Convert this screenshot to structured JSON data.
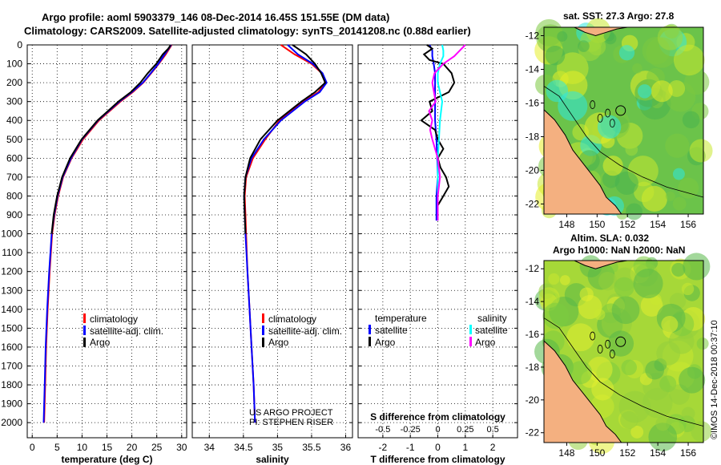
{
  "header": {
    "line1": "Argo profile: aoml 5903379_146 08-Dec-2014 16.45S 151.55E (DM data)",
    "line2": "Climatology: CARS2009. Satellite-adjusted climatology: synTS_20141208.nc (0.88d earlier)"
  },
  "depth_axis": {
    "ticks": [
      0,
      100,
      200,
      300,
      400,
      500,
      600,
      700,
      800,
      900,
      1000,
      1100,
      1200,
      1300,
      1400,
      1500,
      1600,
      1700,
      1800,
      1900,
      2000
    ],
    "range": [
      0,
      2080
    ]
  },
  "colors": {
    "climatology": "#ff0000",
    "satellite": "#0000ff",
    "argo": "#000000",
    "satellite_salt": "#00ffff",
    "argo_salt": "#ff00ff"
  },
  "chart_data": [
    {
      "type": "line",
      "title": "",
      "xlabel": "temperature (deg C)",
      "ylabel": "",
      "xlim": [
        -1,
        31
      ],
      "ylim": [
        2080,
        0
      ],
      "xticks": [
        0,
        5,
        10,
        15,
        20,
        25,
        30
      ],
      "legend": [
        "climatology",
        "satellite-adj. clim.",
        "Argo"
      ],
      "series": [
        {
          "name": "climatology",
          "color": "#ff0000",
          "depth": [
            0,
            50,
            100,
            150,
            200,
            250,
            300,
            400,
            500,
            600,
            700,
            800,
            900,
            1000,
            1200,
            1400,
            1600,
            1800,
            2000
          ],
          "values": [
            28.0,
            26.8,
            25.4,
            23.9,
            22.3,
            20.2,
            17.7,
            13.4,
            10.2,
            7.9,
            6.2,
            5.2,
            4.5,
            4.0,
            3.5,
            3.1,
            2.8,
            2.6,
            2.4
          ]
        },
        {
          "name": "satellite-adj. clim.",
          "color": "#0000ff",
          "depth": [
            0,
            50,
            100,
            150,
            200,
            250,
            300,
            400,
            500,
            600,
            700,
            800,
            900,
            1000,
            1200,
            1400,
            1600,
            1800,
            2000
          ],
          "values": [
            27.9,
            26.6,
            25.3,
            23.8,
            22.2,
            20.0,
            17.5,
            13.2,
            10.0,
            7.8,
            6.1,
            5.1,
            4.4,
            3.9,
            3.4,
            3.0,
            2.7,
            2.5,
            2.3
          ]
        },
        {
          "name": "Argo",
          "color": "#000000",
          "depth": [
            0,
            20,
            50,
            100,
            150,
            200,
            250,
            300,
            400,
            500,
            600,
            700,
            800,
            900,
            1000
          ],
          "values": [
            27.8,
            27.3,
            26.2,
            24.9,
            23.2,
            21.7,
            19.8,
            17.3,
            13.1,
            9.9,
            7.6,
            6.0,
            5.0,
            4.3,
            3.9
          ]
        }
      ]
    },
    {
      "type": "line",
      "title": "",
      "xlabel": "salinity",
      "ylabel": "",
      "xlim": [
        33.75,
        36.1
      ],
      "ylim": [
        2080,
        0
      ],
      "xticks": [
        34,
        34.5,
        35,
        35.5,
        36
      ],
      "xtick_labels": [
        "34",
        "34.5",
        "35",
        "35.5",
        "36"
      ],
      "legend": [
        "climatology",
        "satellite-adj. clim.",
        "Argo"
      ],
      "annotation": [
        "US ARGO PROJECT",
        "PI: STEPHEN RISER"
      ],
      "series": [
        {
          "name": "climatology",
          "color": "#ff0000",
          "depth": [
            0,
            50,
            100,
            150,
            200,
            250,
            300,
            400,
            500,
            600,
            700,
            800,
            900,
            1000,
            1200,
            1400,
            1600,
            1800,
            2000
          ],
          "values": [
            35.05,
            35.25,
            35.5,
            35.65,
            35.7,
            35.6,
            35.38,
            35.03,
            34.82,
            34.64,
            34.54,
            34.52,
            34.53,
            34.54,
            34.56,
            34.59,
            34.62,
            34.65,
            34.67
          ]
        },
        {
          "name": "satellite-adj. clim.",
          "color": "#0000ff",
          "depth": [
            0,
            50,
            100,
            150,
            200,
            250,
            300,
            400,
            500,
            600,
            700,
            800,
            900,
            1000,
            1200,
            1400,
            1600,
            1800,
            2000
          ],
          "values": [
            35.15,
            35.3,
            35.52,
            35.66,
            35.72,
            35.62,
            35.4,
            35.05,
            34.8,
            34.62,
            34.53,
            34.51,
            34.52,
            34.53,
            34.56,
            34.59,
            34.62,
            34.65,
            34.67
          ]
        },
        {
          "name": "Argo",
          "color": "#000000",
          "depth": [
            0,
            20,
            50,
            100,
            150,
            200,
            250,
            300,
            400,
            500,
            600,
            700,
            800,
            900,
            1000
          ],
          "values": [
            35.22,
            35.3,
            35.42,
            35.55,
            35.64,
            35.7,
            35.55,
            35.35,
            35.0,
            34.75,
            34.6,
            34.53,
            34.51,
            34.52,
            34.53
          ]
        }
      ]
    },
    {
      "type": "line",
      "title": "",
      "xlabel": "T difference from climatology",
      "x2label": "S difference from climatology",
      "ylabel": "",
      "xlim": [
        -2.9,
        2.9
      ],
      "ylim": [
        2080,
        0
      ],
      "xticks": [
        -2,
        -1,
        0,
        1,
        2
      ],
      "x2ticks": [
        -0.5,
        -0.25,
        0,
        0.25,
        0.5
      ],
      "x2tick_labels": [
        "-0.5",
        "-0.25",
        "0",
        "0.25",
        "0.5"
      ],
      "legend_temperature": {
        "heading": "temperature",
        "items": [
          "satellite",
          "Argo"
        ]
      },
      "legend_salinity": {
        "heading": "salinity",
        "items": [
          "satellite",
          "Argo"
        ]
      },
      "series": [
        {
          "name": "T satellite",
          "color": "#0000ff",
          "depth": [
            0,
            30,
            60,
            100,
            150,
            200,
            300,
            400,
            500,
            600,
            700,
            800,
            900,
            930
          ],
          "values": [
            -0.3,
            -0.2,
            -0.2,
            -0.15,
            -0.1,
            -0.1,
            -0.1,
            -0.1,
            -0.05,
            -0.02,
            0.0,
            -0.05,
            -0.05,
            -0.05
          ]
        },
        {
          "name": "T Argo",
          "color": "#000000",
          "depth": [
            0,
            20,
            50,
            80,
            100,
            150,
            200,
            250,
            300,
            350,
            400,
            450,
            500,
            550,
            600,
            650,
            700,
            750,
            800,
            850,
            900,
            930
          ],
          "values": [
            -0.4,
            -0.2,
            -0.5,
            -0.3,
            0.2,
            0.5,
            0.6,
            0.4,
            -0.3,
            -0.2,
            -0.6,
            -0.1,
            0.0,
            0.2,
            0.0,
            0.1,
            0.3,
            0.4,
            0.2,
            0.0,
            0.0,
            0.0
          ]
        },
        {
          "name": "S satellite",
          "color": "#00ffff",
          "depth": [
            0,
            30,
            60,
            100,
            150,
            200,
            300,
            400,
            500,
            600,
            700,
            800,
            900,
            930
          ],
          "values": [
            0.04,
            0.05,
            0.05,
            0.02,
            0.0,
            0.0,
            0.04,
            0.02,
            0.01,
            0.0,
            0.0,
            0.0,
            0.0,
            0.0
          ]
        },
        {
          "name": "S Argo",
          "color": "#ff00ff",
          "depth": [
            0,
            30,
            60,
            100,
            150,
            200,
            300,
            350,
            400,
            450,
            500,
            600,
            700,
            800,
            900,
            930
          ],
          "values": [
            0.25,
            0.2,
            0.15,
            0.05,
            -0.03,
            -0.05,
            -0.02,
            -0.08,
            -0.05,
            -0.07,
            -0.05,
            0.0,
            0.02,
            0.0,
            0.0,
            0.0
          ]
        }
      ]
    },
    {
      "type": "heatmap",
      "title": "sat. SST: 27.3 Argo: 27.8",
      "xlim": [
        146.5,
        157
      ],
      "ylim": [
        -22.6,
        -11.5
      ],
      "xticks": [
        148,
        150,
        152,
        154,
        156
      ],
      "yticks": [
        -12,
        -14,
        -16,
        -18,
        -20,
        -22
      ],
      "marker": {
        "lon": 151.55,
        "lat": -16.45
      }
    },
    {
      "type": "heatmap",
      "title": "Altim. SLA: 0.032",
      "subtitle": "Argo h1000: NaN h2000: NaN",
      "xlim": [
        146.5,
        157
      ],
      "ylim": [
        -22.6,
        -11.5
      ],
      "xticks": [
        148,
        150,
        152,
        154,
        156
      ],
      "yticks": [
        -12,
        -14,
        -16,
        -18,
        -20,
        -22
      ],
      "marker": {
        "lon": 151.55,
        "lat": -16.45
      }
    }
  ],
  "credit": "©IMOS 14-Dec-2018 00:37:10"
}
